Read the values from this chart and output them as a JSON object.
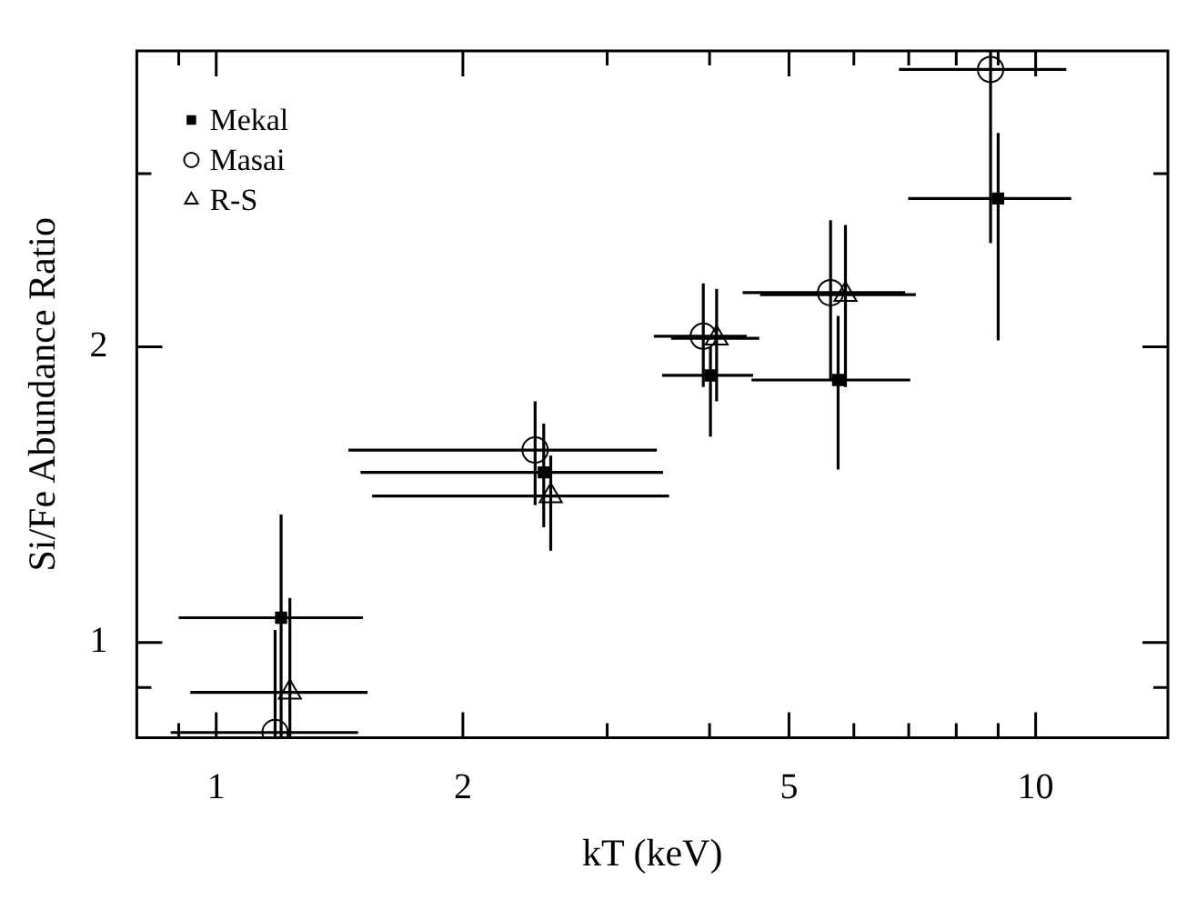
{
  "chart_data": {
    "type": "scatter",
    "xlabel": "kT (keV)",
    "ylabel": "Si/Fe Abundance Ratio",
    "log": "xy",
    "legend": "top left",
    "xlim": [
      0.8,
      14.5
    ],
    "ylim": [
      0.8,
      4
    ],
    "xticks": [
      {
        "value": 0.9,
        "label": null
      },
      1,
      2,
      {
        "value": 3,
        "label": null
      },
      {
        "value": 4,
        "label": null
      },
      5,
      {
        "value": 6,
        "label": null
      },
      {
        "value": 7,
        "label": null
      },
      {
        "value": 8,
        "label": null
      },
      {
        "value": 9,
        "label": null
      },
      10
    ],
    "yticks": [
      {
        "value": 0.9,
        "label": null
      },
      1,
      2,
      {
        "value": 3,
        "label": null
      }
    ],
    "series": [
      {
        "name": "Mekal",
        "color": "#000000",
        "marker": "square",
        "x": [
          1.2,
          2.51,
          4.01,
          5.74,
          9.0
        ],
        "values": [
          1.06,
          1.49,
          1.87,
          1.85,
          2.83
        ],
        "errors": [
          [
            0.8,
            1.35
          ],
          [
            1.31,
            1.67
          ],
          [
            1.62,
            2.0
          ],
          [
            1.5,
            2.15
          ],
          [
            2.03,
            3.3
          ]
        ],
        "xerrors": [
          [
            0.9,
            1.51
          ],
          [
            1.5,
            3.51
          ],
          [
            3.5,
            4.52
          ],
          [
            4.5,
            7.03
          ],
          [
            6.99,
            11.05
          ]
        ]
      },
      {
        "name": "Masai",
        "color": "#000000",
        "marker": "circle",
        "x": [
          1.18,
          2.45,
          3.93,
          5.62,
          8.81
        ],
        "values": [
          0.81,
          1.57,
          2.05,
          2.27,
          3.83
        ],
        "errors": [
          [
            0.8,
            1.03
          ],
          [
            1.38,
            1.76
          ],
          [
            1.82,
            2.32
          ],
          [
            1.85,
            2.69
          ],
          [
            2.55,
            4.0
          ]
        ],
        "xerrors": [
          [
            0.88,
            1.49
          ],
          [
            1.45,
            3.45
          ],
          [
            3.42,
            4.44
          ],
          [
            4.39,
            6.93
          ],
          [
            6.81,
            10.9
          ]
        ]
      },
      {
        "name": "R-S",
        "color": "#000000",
        "marker": "triangle",
        "x": [
          1.23,
          2.56,
          4.08,
          5.86
        ],
        "values": [
          0.89,
          1.41,
          2.04,
          2.26
        ],
        "errors": [
          [
            0.8,
            1.11
          ],
          [
            1.24,
            1.55
          ],
          [
            1.76,
            2.29
          ],
          [
            1.82,
            2.66
          ]
        ],
        "xerrors": [
          [
            0.93,
            1.53
          ],
          [
            1.55,
            3.57
          ],
          [
            3.59,
            4.6
          ],
          [
            4.61,
            7.14
          ]
        ]
      }
    ]
  }
}
